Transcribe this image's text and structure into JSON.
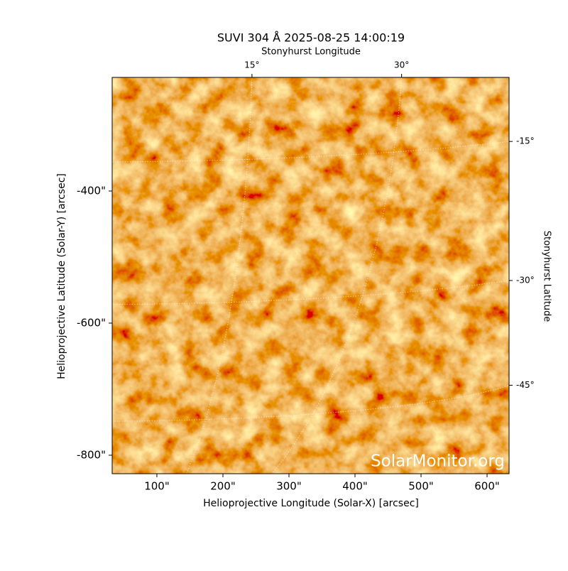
{
  "chart_data": {
    "type": "image",
    "title": "SUVI 304 Å 2025-08-25 14:00:19",
    "xlabel": "Helioprojective Longitude (Solar-X) [arcsec]",
    "ylabel": "Helioprojective Latitude (Solar-Y) [arcsec]",
    "top_axis_label": "Stonyhurst Longitude",
    "right_axis_label": "Stonyhurst Latitude",
    "watermark": "SolarMonitor.org",
    "xlim": [
      32.3,
      633.3
    ],
    "ylim": [
      -828,
      -228
    ],
    "xticks": [
      {
        "value": 100,
        "label": "100\""
      },
      {
        "value": 200,
        "label": "200\""
      },
      {
        "value": 300,
        "label": "300\""
      },
      {
        "value": 400,
        "label": "400\""
      },
      {
        "value": 500,
        "label": "500\""
      },
      {
        "value": 600,
        "label": "600\""
      }
    ],
    "yticks": [
      {
        "value": -400,
        "label": "-400\""
      },
      {
        "value": -600,
        "label": "-600\""
      },
      {
        "value": -800,
        "label": "-800\""
      }
    ],
    "top_ticks": [
      {
        "value": 15,
        "label": "15°"
      },
      {
        "value": 30,
        "label": "30°"
      }
    ],
    "right_ticks": [
      {
        "value": -15,
        "label": "-15°"
      },
      {
        "value": -30,
        "label": "-30°"
      },
      {
        "value": -45,
        "label": "-45°"
      }
    ],
    "grid": true
  }
}
